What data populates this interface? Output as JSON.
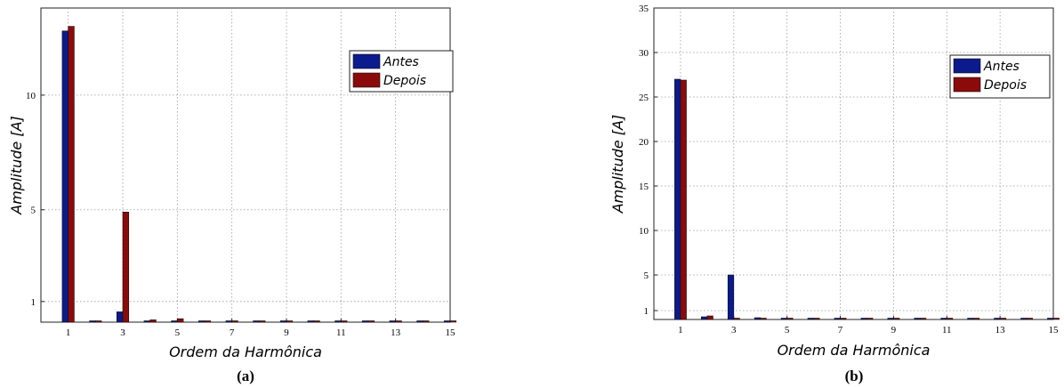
{
  "chart_data": [
    {
      "type": "bar",
      "caption": "(a)",
      "xlabel": "Ordem da Harmônica",
      "ylabel": "Amplitude [A]",
      "xlim": [
        0,
        15
      ],
      "ylim": [
        0.1,
        13.8
      ],
      "grid": true,
      "legend_position": "top-right",
      "xticks": [
        1,
        3,
        5,
        7,
        9,
        11,
        13,
        15
      ],
      "yticks": [
        1,
        5,
        10
      ],
      "x": [
        1,
        2,
        3,
        4,
        5,
        6,
        7,
        8,
        9,
        10,
        11,
        12,
        13,
        14,
        15
      ],
      "series": [
        {
          "name": "Antes",
          "color": "#0b1a8c",
          "values": [
            12.8,
            0.15,
            0.55,
            0.12,
            0.12,
            0.08,
            0.08,
            0.06,
            0.06,
            0.05,
            0.05,
            0.05,
            0.05,
            0.04,
            0.04
          ]
        },
        {
          "name": "Depois",
          "color": "#8b0a0a",
          "values": [
            13.0,
            0.15,
            4.9,
            0.2,
            0.25,
            0.1,
            0.15,
            0.08,
            0.1,
            0.06,
            0.06,
            0.05,
            0.06,
            0.05,
            0.05
          ]
        }
      ]
    },
    {
      "type": "bar",
      "caption": "(b)",
      "xlabel": "Ordem da Harmônica",
      "ylabel": "Amplitude [A]",
      "xlim": [
        0,
        15
      ],
      "ylim": [
        0,
        35
      ],
      "grid": true,
      "legend_position": "top-right",
      "xticks": [
        1,
        3,
        5,
        7,
        9,
        11,
        13,
        15
      ],
      "yticks": [
        1,
        5,
        10,
        15,
        20,
        25,
        30,
        35
      ],
      "x": [
        1,
        2,
        3,
        4,
        5,
        6,
        7,
        8,
        9,
        10,
        11,
        12,
        13,
        14,
        15
      ],
      "series": [
        {
          "name": "Antes",
          "color": "#0b1a8c",
          "values": [
            27.0,
            0.3,
            5.0,
            0.2,
            0.15,
            0.1,
            0.1,
            0.1,
            0.08,
            0.08,
            0.06,
            0.06,
            0.05,
            0.05,
            0.05
          ]
        },
        {
          "name": "Depois",
          "color": "#8b0a0a",
          "values": [
            26.9,
            0.4,
            0.1,
            0.1,
            0.1,
            0.08,
            0.08,
            0.06,
            0.06,
            0.05,
            0.05,
            0.05,
            0.05,
            0.05,
            0.05
          ]
        }
      ]
    }
  ]
}
